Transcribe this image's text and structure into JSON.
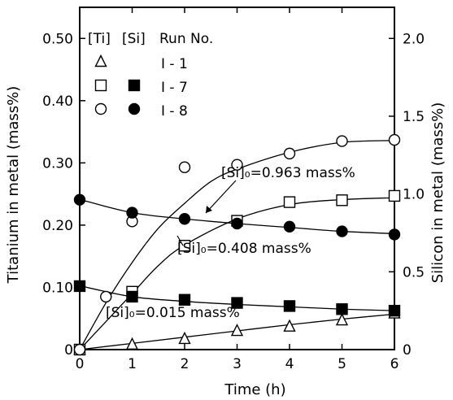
{
  "chart_data": {
    "type": "scatter",
    "xlabel": "Time (h)",
    "ylabel_left": "Titanium in metal (mass%)",
    "ylabel_right": "Silicon in metal (mass%)",
    "xlim": [
      0,
      6
    ],
    "ylim_left": [
      0,
      0.55
    ],
    "ylim_right": [
      0,
      2.2
    ],
    "x_ticks": [
      0,
      1,
      2,
      3,
      4,
      5,
      6
    ],
    "y_left_ticks": [
      "0",
      "0.10",
      "0.20",
      "0.30",
      "0.40",
      "0.50"
    ],
    "y_left_tick_values": [
      0,
      0.1,
      0.2,
      0.3,
      0.4,
      0.5
    ],
    "y_right_ticks": [
      "0",
      "0.5",
      "1.0",
      "1.5",
      "2.0"
    ],
    "y_right_tick_values": [
      0,
      0.5,
      1.0,
      1.5,
      2.0
    ],
    "grid": false,
    "legend": {
      "header": [
        "[Ti]",
        "[Si]",
        "Run No."
      ],
      "rows": [
        {
          "ti_marker": "open-triangle",
          "si_marker": "",
          "run": "I - 1"
        },
        {
          "ti_marker": "open-square",
          "si_marker": "filled-square",
          "run": "I - 7"
        },
        {
          "ti_marker": "open-circle",
          "si_marker": "filled-circle",
          "run": "I - 8"
        }
      ]
    },
    "annotations": [
      "[Si]₀=0.963 mass%",
      "[Si]₀=0.408 mass%",
      "[Si]₀=0.015 mass%"
    ],
    "series": [
      {
        "axis": "left",
        "marker": "open-triangle",
        "run": "I - 1",
        "quantity": "Ti",
        "x": [
          0,
          1,
          2,
          3,
          4,
          5,
          6
        ],
        "y": [
          0.0,
          0.008,
          0.017,
          0.03,
          0.037,
          0.047,
          0.058
        ]
      },
      {
        "axis": "left",
        "marker": "open-square",
        "run": "I - 7",
        "quantity": "Ti",
        "x": [
          0,
          1,
          2,
          3,
          4,
          5,
          6
        ],
        "y": [
          0.0,
          0.093,
          0.167,
          0.207,
          0.237,
          0.24,
          0.247
        ]
      },
      {
        "axis": "left",
        "marker": "open-circle",
        "run": "I - 8",
        "quantity": "Ti",
        "x": [
          0,
          0.5,
          1,
          2,
          3,
          4,
          5,
          6
        ],
        "y": [
          0.0,
          0.085,
          0.206,
          0.293,
          0.297,
          0.315,
          0.335,
          0.337
        ]
      },
      {
        "axis": "right",
        "marker": "filled-square",
        "run": "I - 7",
        "quantity": "Si",
        "x": [
          0,
          1,
          2,
          3,
          4,
          5,
          6
        ],
        "y": [
          0.408,
          0.34,
          0.32,
          0.3,
          0.28,
          0.26,
          0.25
        ]
      },
      {
        "axis": "right",
        "marker": "filled-circle",
        "run": "I - 8",
        "quantity": "Si",
        "x": [
          0,
          1,
          2,
          3,
          4,
          5,
          6
        ],
        "y": [
          0.963,
          0.88,
          0.84,
          0.81,
          0.79,
          0.76,
          0.74
        ]
      }
    ],
    "fit_curves": [
      {
        "axis": "left",
        "x": [
          0,
          1,
          2,
          3,
          4,
          5,
          6
        ],
        "y": [
          0.0,
          0.01,
          0.02,
          0.03,
          0.04,
          0.049,
          0.057
        ]
      },
      {
        "axis": "left",
        "x": [
          0,
          0.5,
          1,
          1.5,
          2,
          3,
          4,
          5,
          6
        ],
        "y": [
          0.0,
          0.045,
          0.09,
          0.135,
          0.168,
          0.21,
          0.233,
          0.241,
          0.244
        ]
      },
      {
        "axis": "left",
        "x": [
          0,
          0.5,
          1,
          1.5,
          2,
          2.5,
          3,
          4,
          5,
          6
        ],
        "y": [
          0.0,
          0.075,
          0.14,
          0.195,
          0.235,
          0.27,
          0.29,
          0.317,
          0.333,
          0.336
        ]
      },
      {
        "axis": "right",
        "x": [
          0,
          1,
          2,
          3,
          4,
          5,
          6
        ],
        "y": [
          0.41,
          0.34,
          0.31,
          0.29,
          0.275,
          0.26,
          0.25
        ]
      },
      {
        "axis": "right",
        "x": [
          0,
          1,
          2,
          3,
          4,
          5,
          6
        ],
        "y": [
          0.965,
          0.88,
          0.84,
          0.81,
          0.785,
          0.76,
          0.745
        ]
      }
    ]
  }
}
